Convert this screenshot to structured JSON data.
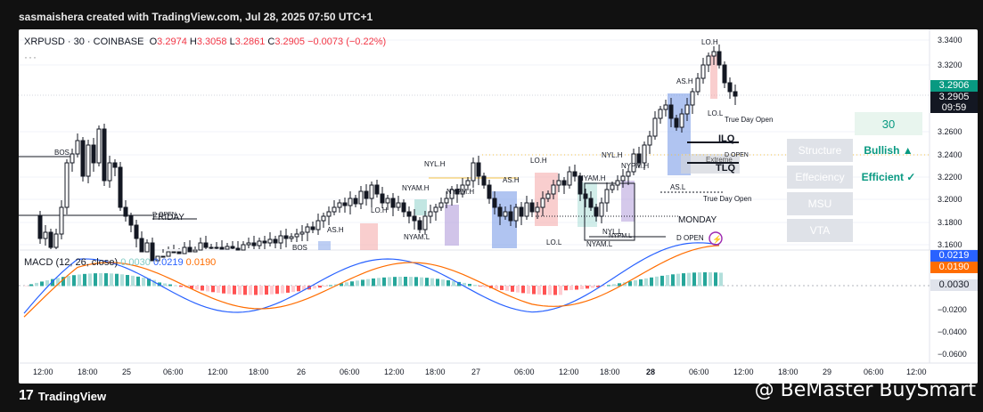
{
  "header": {
    "caption": "sasmaishera created with TradingView.com, Jul 28, 2025 07:50 UTC+1"
  },
  "symbol": {
    "name": "XRPUSD · 30 · COINBASE",
    "o_label": "O",
    "o": "3.2974",
    "h_label": "H",
    "h": "3.3058",
    "l_label": "L",
    "l": "3.2861",
    "c_label": "C",
    "c": "3.2905",
    "change": "−0.0073 (−0.22%)",
    "more": "···"
  },
  "macd": {
    "label": "MACD (12, 26, close)",
    "v1": "0.0030",
    "v2": "0.0219",
    "v3": "0.0190"
  },
  "price_axis": {
    "ticks": [
      "3.3400",
      "3.3200",
      "3.2600",
      "3.2400",
      "3.2200",
      "3.2000",
      "3.1800",
      "3.1600"
    ],
    "current": "3.2906",
    "last": "3.2905",
    "countdown": "09:59",
    "macd_ticks": [
      "−0.0200",
      "−0.0400",
      "−0.0600"
    ],
    "macd_badge_blue": "0.0219",
    "macd_badge_orange": "0.0190",
    "macd_badge_grey": "0.0030"
  },
  "time_axis": [
    "12:00",
    "18:00",
    "25",
    "06:00",
    "12:00",
    "18:00",
    "26",
    "06:00",
    "12:00",
    "18:00",
    "27",
    "06:00",
    "12:00",
    "18:00",
    "28",
    "06:00",
    "12:00",
    "18:00",
    "29",
    "06:00",
    "12:00"
  ],
  "annotations": {
    "bos1": "BOS",
    "bos2": "BOS",
    "friday": "FRIDAY",
    "d_open1": "D OPEN",
    "ash1": "AS.H",
    "loh1": "LO.H",
    "nylh1": "NYL.H",
    "nyamh1": "NYAM.H",
    "nypmh1": "NYPM.H",
    "nyaml1": "NYAM.L",
    "ash2": "AS.H",
    "loh2": "LO.H",
    "nyamh2": "NYAM.H",
    "nylh2": "NYL.H",
    "nypmh2": "NYPM.H",
    "lol1": "LO.L",
    "nyaml2": "NYAM.L",
    "nyll": "NYL.L",
    "nypml": "NYPM.L",
    "d_open2": "D OPEN",
    "monday": "MONDAY",
    "true_day_open1": "True Day Open",
    "asl": "AS.L",
    "ash3": "AS.H",
    "loh3": "LO.H",
    "lol2": "LO.L",
    "true_day_open2": "True Day Open",
    "ilq": "ILQ",
    "tlq": "TLQ",
    "d_open3": "D OPEN",
    "extreme": "Extreme"
  },
  "side_panel": {
    "timeframe": "30",
    "rows": [
      {
        "label": "Structure",
        "value": "Bullish ▲"
      },
      {
        "label": "Effeciency",
        "value": "Efficient ✓"
      },
      {
        "label": "MSU",
        "value": ""
      },
      {
        "label": "VTA",
        "value": ""
      }
    ]
  },
  "footer": {
    "brand": "TradingView",
    "logo": "17"
  },
  "watermark": "@ BeMaster BuySmart",
  "colors": {
    "up": "#089981",
    "down": "#f23645",
    "macd": "#2962ff",
    "signal": "#ff6d00",
    "accent": "#2962ff"
  }
}
